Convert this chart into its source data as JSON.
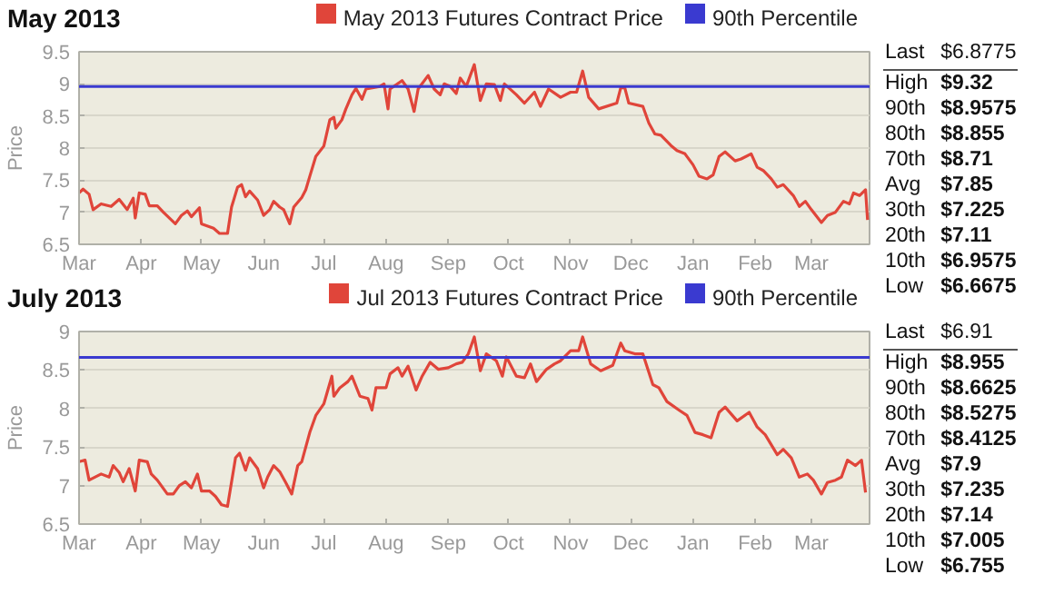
{
  "chart_data": [
    {
      "type": "line",
      "title": "May 2013",
      "ylabel": "Price",
      "legend": "top",
      "grid": "y",
      "xlim": [
        "2012-03-01",
        "2013-03-30"
      ],
      "ylim": [
        6.5,
        9.5
      ],
      "yticks": [
        6.5,
        7,
        7.5,
        8,
        8.5,
        9,
        9.5
      ],
      "xticks": [
        {
          "value": "2012-03-01",
          "label": "Mar"
        },
        {
          "value": "2012-04-01",
          "label": "Apr"
        },
        {
          "value": "2012-05-01",
          "label": "May"
        },
        {
          "value": "2012-06-01",
          "label": "Jun"
        },
        {
          "value": "2012-07-01",
          "label": "Jul"
        },
        {
          "value": "2012-08-01",
          "label": "Aug"
        },
        {
          "value": "2012-09-01",
          "label": "Sep"
        },
        {
          "value": "2012-10-01",
          "label": "Oct"
        },
        {
          "value": "2012-11-01",
          "label": "Nov"
        },
        {
          "value": "2012-12-01",
          "label": "Dec"
        },
        {
          "value": "2013-01-01",
          "label": "Jan"
        },
        {
          "value": "2013-02-01",
          "label": "Feb"
        },
        {
          "value": "2013-03-01",
          "label": "Mar"
        }
      ],
      "series": [
        {
          "name": "May 2013 Futures Contract Price",
          "color": "#e0453a",
          "x": [
            "2012-03-01",
            "2012-03-03",
            "2012-03-06",
            "2012-03-08",
            "2012-03-12",
            "2012-03-17",
            "2012-03-21",
            "2012-03-25",
            "2012-03-28",
            "2012-03-29",
            "2012-03-31",
            "2012-04-03",
            "2012-04-05",
            "2012-04-09",
            "2012-04-12",
            "2012-04-18",
            "2012-04-21",
            "2012-04-24",
            "2012-04-26",
            "2012-04-30",
            "2012-05-01",
            "2012-05-07",
            "2012-05-10",
            "2012-05-14",
            "2012-05-16",
            "2012-05-19",
            "2012-05-21",
            "2012-05-23",
            "2012-05-25",
            "2012-05-29",
            "2012-06-01",
            "2012-06-04",
            "2012-06-06",
            "2012-06-09",
            "2012-06-11",
            "2012-06-14",
            "2012-06-16",
            "2012-06-20",
            "2012-06-22",
            "2012-06-24",
            "2012-06-27",
            "2012-07-01",
            "2012-07-04",
            "2012-07-06",
            "2012-07-07",
            "2012-07-10",
            "2012-07-12",
            "2012-07-15",
            "2012-07-17",
            "2012-07-20",
            "2012-07-22",
            "2012-07-29",
            "2012-07-31",
            "2012-08-02",
            "2012-08-03",
            "2012-08-09",
            "2012-08-12",
            "2012-08-15",
            "2012-08-17",
            "2012-08-22",
            "2012-08-25",
            "2012-08-28",
            "2012-08-30",
            "2012-09-02",
            "2012-09-05",
            "2012-09-07",
            "2012-09-10",
            "2012-09-14",
            "2012-09-17",
            "2012-09-20",
            "2012-09-24",
            "2012-09-27",
            "2012-09-29",
            "2012-10-05",
            "2012-10-09",
            "2012-10-14",
            "2012-10-17",
            "2012-10-21",
            "2012-10-27",
            "2012-11-01",
            "2012-11-04",
            "2012-11-07",
            "2012-11-10",
            "2012-11-15",
            "2012-11-24",
            "2012-11-26",
            "2012-11-28",
            "2012-11-30",
            "2012-12-07",
            "2012-12-10",
            "2012-12-13",
            "2012-12-16",
            "2012-12-21",
            "2012-12-24",
            "2012-12-28",
            "2013-01-01",
            "2013-01-04",
            "2013-01-08",
            "2013-01-11",
            "2013-01-14",
            "2013-01-17",
            "2013-01-22",
            "2013-01-25",
            "2013-01-30",
            "2013-02-02",
            "2013-02-05",
            "2013-02-09",
            "2013-02-12",
            "2013-02-15",
            "2013-02-20",
            "2013-02-23",
            "2013-02-26",
            "2013-03-01",
            "2013-03-06",
            "2013-03-09",
            "2013-03-13",
            "2013-03-17",
            "2013-03-20",
            "2013-03-22",
            "2013-03-25",
            "2013-03-28",
            "2013-03-29"
          ],
          "values": [
            7.3,
            7.36,
            7.28,
            7.04,
            7.13,
            7.09,
            7.2,
            7.04,
            7.22,
            6.91,
            7.3,
            7.28,
            7.1,
            7.1,
            7.0,
            6.82,
            6.95,
            7.02,
            6.93,
            7.07,
            6.82,
            6.75,
            6.67,
            6.67,
            7.08,
            7.39,
            7.43,
            7.24,
            7.33,
            7.19,
            6.95,
            7.04,
            7.17,
            7.08,
            7.04,
            6.82,
            7.08,
            7.23,
            7.35,
            7.56,
            7.87,
            8.03,
            8.44,
            8.48,
            8.31,
            8.44,
            8.61,
            8.83,
            8.93,
            8.76,
            8.92,
            8.96,
            9.0,
            8.61,
            8.92,
            9.05,
            8.92,
            8.57,
            8.92,
            9.13,
            8.92,
            8.83,
            9.0,
            8.96,
            8.85,
            9.09,
            8.96,
            9.3,
            8.74,
            9.0,
            8.99,
            8.74,
            9.0,
            8.83,
            8.7,
            8.87,
            8.65,
            8.92,
            8.79,
            8.87,
            8.87,
            9.2,
            8.79,
            8.61,
            8.7,
            8.94,
            8.94,
            8.7,
            8.65,
            8.39,
            8.22,
            8.2,
            8.04,
            7.96,
            7.91,
            7.74,
            7.56,
            7.52,
            7.58,
            7.87,
            7.94,
            7.8,
            7.83,
            7.91,
            7.7,
            7.65,
            7.52,
            7.39,
            7.43,
            7.26,
            7.09,
            7.17,
            7.04,
            6.84,
            6.95,
            7.0,
            7.17,
            7.13,
            7.3,
            7.26,
            7.35,
            6.88
          ]
        }
      ],
      "ref_lines": [
        {
          "axis": "y",
          "value": 8.9575,
          "label": "90th Percentile",
          "color": "#3a3ad0"
        }
      ],
      "annotations": [
        "Last $6.8775",
        "High $9.32",
        "90th $8.9575",
        "80th $8.855",
        "70th $8.71",
        "Avg $7.85",
        "30th $7.225",
        "20th $7.11",
        "10th $6.9575",
        "Low $6.6675"
      ]
    },
    {
      "type": "line",
      "title": "July 2013",
      "ylabel": "Price",
      "legend": "top",
      "grid": "y",
      "xlim": [
        "2012-03-01",
        "2013-03-30"
      ],
      "ylim": [
        6.5,
        9
      ],
      "yticks": [
        6.5,
        7,
        7.5,
        8,
        8.5,
        9
      ],
      "xticks": [
        {
          "value": "2012-03-01",
          "label": "Mar"
        },
        {
          "value": "2012-04-01",
          "label": "Apr"
        },
        {
          "value": "2012-05-01",
          "label": "May"
        },
        {
          "value": "2012-06-01",
          "label": "Jun"
        },
        {
          "value": "2012-07-01",
          "label": "Jul"
        },
        {
          "value": "2012-08-01",
          "label": "Aug"
        },
        {
          "value": "2012-09-01",
          "label": "Sep"
        },
        {
          "value": "2012-10-01",
          "label": "Oct"
        },
        {
          "value": "2012-11-01",
          "label": "Nov"
        },
        {
          "value": "2012-12-01",
          "label": "Dec"
        },
        {
          "value": "2013-01-01",
          "label": "Jan"
        },
        {
          "value": "2013-02-01",
          "label": "Feb"
        },
        {
          "value": "2013-03-01",
          "label": "Mar"
        }
      ],
      "series": [
        {
          "name": "Jul 2013 Futures Contract Price",
          "color": "#e0453a",
          "x": [
            "2012-03-01",
            "2012-03-04",
            "2012-03-06",
            "2012-03-12",
            "2012-03-16",
            "2012-03-18",
            "2012-03-21",
            "2012-03-23",
            "2012-03-26",
            "2012-03-29",
            "2012-03-31",
            "2012-04-04",
            "2012-04-06",
            "2012-04-09",
            "2012-04-14",
            "2012-04-17",
            "2012-04-20",
            "2012-04-23",
            "2012-04-26",
            "2012-04-29",
            "2012-05-01",
            "2012-05-05",
            "2012-05-08",
            "2012-05-11",
            "2012-05-14",
            "2012-05-18",
            "2012-05-20",
            "2012-05-23",
            "2012-05-25",
            "2012-05-29",
            "2012-06-01",
            "2012-06-03",
            "2012-06-06",
            "2012-06-09",
            "2012-06-12",
            "2012-06-15",
            "2012-06-18",
            "2012-06-20",
            "2012-06-24",
            "2012-06-27",
            "2012-07-01",
            "2012-07-05",
            "2012-07-06",
            "2012-07-09",
            "2012-07-13",
            "2012-07-15",
            "2012-07-19",
            "2012-07-23",
            "2012-07-25",
            "2012-07-27",
            "2012-08-01",
            "2012-08-03",
            "2012-08-07",
            "2012-08-09",
            "2012-08-12",
            "2012-08-16",
            "2012-08-19",
            "2012-08-23",
            "2012-08-27",
            "2012-09-01",
            "2012-09-05",
            "2012-09-08",
            "2012-09-11",
            "2012-09-14",
            "2012-09-17",
            "2012-09-20",
            "2012-09-25",
            "2012-09-28",
            "2012-09-30",
            "2012-10-05",
            "2012-10-09",
            "2012-10-12",
            "2012-10-15",
            "2012-10-20",
            "2012-10-24",
            "2012-10-27",
            "2012-11-01",
            "2012-11-05",
            "2012-11-07",
            "2012-11-11",
            "2012-11-16",
            "2012-11-22",
            "2012-11-26",
            "2012-11-28",
            "2012-12-03",
            "2012-12-07",
            "2012-12-12",
            "2012-12-15",
            "2012-12-19",
            "2012-12-25",
            "2012-12-29",
            "2013-01-02",
            "2013-01-06",
            "2013-01-10",
            "2013-01-14",
            "2013-01-17",
            "2013-01-23",
            "2013-01-29",
            "2013-02-02",
            "2013-02-06",
            "2013-02-12",
            "2013-02-15",
            "2013-02-19",
            "2013-02-23",
            "2013-02-27",
            "2013-03-02",
            "2013-03-06",
            "2013-03-09",
            "2013-03-13",
            "2013-03-16",
            "2013-03-19",
            "2013-03-23",
            "2013-03-26",
            "2013-03-28"
          ],
          "values": [
            7.31,
            7.33,
            7.07,
            7.15,
            7.11,
            7.26,
            7.17,
            7.05,
            7.22,
            6.93,
            7.33,
            7.31,
            7.15,
            7.07,
            6.89,
            6.89,
            7.0,
            7.05,
            6.97,
            7.15,
            6.93,
            6.93,
            6.86,
            6.75,
            6.73,
            7.36,
            7.42,
            7.2,
            7.36,
            7.22,
            6.97,
            7.11,
            7.26,
            7.18,
            7.04,
            6.89,
            7.26,
            7.31,
            7.69,
            7.91,
            8.06,
            8.42,
            8.16,
            8.27,
            8.35,
            8.42,
            8.16,
            8.13,
            7.98,
            8.27,
            8.27,
            8.45,
            8.53,
            8.42,
            8.55,
            8.24,
            8.42,
            8.6,
            8.51,
            8.53,
            8.58,
            8.6,
            8.71,
            8.93,
            8.49,
            8.71,
            8.62,
            8.42,
            8.67,
            8.42,
            8.4,
            8.58,
            8.35,
            8.51,
            8.58,
            8.62,
            8.75,
            8.75,
            8.93,
            8.58,
            8.49,
            8.56,
            8.85,
            8.75,
            8.71,
            8.71,
            8.31,
            8.27,
            8.09,
            7.98,
            7.91,
            7.69,
            7.66,
            7.62,
            7.95,
            8.02,
            7.84,
            7.95,
            7.76,
            7.66,
            7.4,
            7.47,
            7.36,
            7.11,
            7.15,
            7.07,
            6.89,
            7.04,
            7.07,
            7.11,
            7.33,
            7.26,
            7.33,
            6.91
          ]
        }
      ],
      "ref_lines": [
        {
          "axis": "y",
          "value": 8.6625,
          "label": "90th Percentile",
          "color": "#3a3ad0"
        }
      ],
      "annotations": [
        "Last $6.91",
        "High $8.955",
        "90th $8.6625",
        "80th $8.5275",
        "70th $8.4125",
        "Avg $7.9",
        "30th $7.235",
        "20th $7.14",
        "10th $7.005",
        "Low $6.755"
      ]
    }
  ]
}
